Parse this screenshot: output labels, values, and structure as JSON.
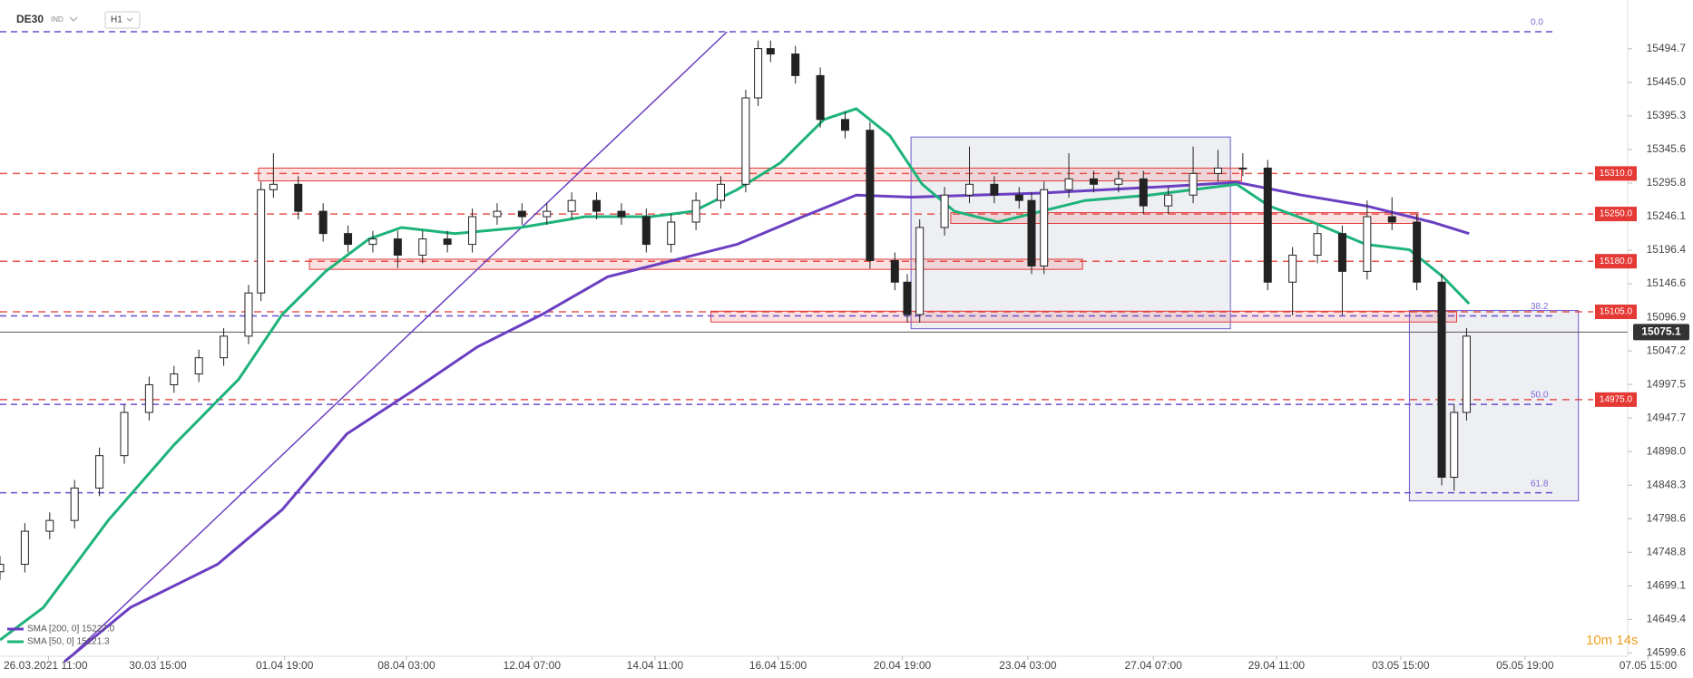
{
  "header": {
    "symbol": "DE30",
    "tag": "IND",
    "timeframe": "H1"
  },
  "timer": "10m 14s",
  "chart_data": {
    "type": "candlestick",
    "x": [
      0,
      2,
      4,
      6,
      8,
      10,
      12,
      14,
      16,
      18,
      20,
      21,
      22,
      24,
      26,
      28,
      30,
      32,
      34,
      36,
      38,
      40,
      42,
      44,
      46,
      48,
      50,
      52,
      54,
      56,
      58,
      60,
      61,
      62,
      64,
      66,
      68,
      70,
      72,
      73,
      74,
      76,
      78,
      80,
      82,
      83,
      84,
      86,
      88,
      90,
      92,
      94,
      96,
      98,
      100,
      102,
      104,
      106,
      108,
      110,
      112,
      114,
      116,
      117,
      118
    ],
    "open": [
      14720,
      14731,
      14780,
      14796,
      14844,
      14892,
      14956,
      14997,
      15013,
      15037,
      15069,
      15133,
      15286,
      15294,
      15254,
      15221,
      15205,
      15213,
      15189,
      15213,
      15205,
      15246,
      15254,
      15246,
      15254,
      15270,
      15254,
      15246,
      15205,
      15238,
      15270,
      15294,
      15422,
      15495,
      15487,
      15455,
      15390,
      15374,
      15181,
      15149,
      15101,
      15230,
      15278,
      15294,
      15278,
      15270,
      15173,
      15286,
      15302,
      15294,
      15302,
      15262,
      15278,
      15310,
      15318,
      15318,
      15149,
      15189,
      15221,
      15165,
      15246,
      15238,
      15149,
      14860,
      14956
    ],
    "high": [
      14743,
      14792,
      14808,
      14856,
      14904,
      14968,
      15009,
      15025,
      15049,
      15081,
      15145,
      15298,
      15340,
      15306,
      15266,
      15233,
      15225,
      15225,
      15225,
      15225,
      15258,
      15266,
      15266,
      15266,
      15282,
      15282,
      15266,
      15258,
      15250,
      15282,
      15306,
      15434,
      15507,
      15507,
      15499,
      15467,
      15402,
      15386,
      15193,
      15161,
      15242,
      15290,
      15350,
      15306,
      15290,
      15282,
      15298,
      15340,
      15314,
      15314,
      15314,
      15290,
      15350,
      15345,
      15340,
      15330,
      15201,
      15233,
      15233,
      15270,
      15275,
      15250,
      15161,
      14968,
      15081
    ],
    "low": [
      14708,
      14719,
      14768,
      14784,
      14832,
      14880,
      14944,
      14985,
      15001,
      15025,
      15057,
      15121,
      15274,
      15242,
      15209,
      15193,
      15193,
      15170,
      15177,
      15193,
      15193,
      15234,
      15234,
      15234,
      15242,
      15242,
      15234,
      15193,
      15193,
      15226,
      15258,
      15282,
      15410,
      15475,
      15443,
      15378,
      15362,
      15169,
      15137,
      15089,
      15089,
      15218,
      15266,
      15266,
      15258,
      15161,
      15161,
      15274,
      15282,
      15282,
      15250,
      15250,
      15266,
      15298,
      15306,
      15137,
      15100,
      15177,
      15100,
      15153,
      15226,
      15137,
      14848,
      14840,
      14944
    ],
    "close": [
      14731,
      14780,
      14796,
      14844,
      14892,
      14956,
      14997,
      15013,
      15037,
      15069,
      15133,
      15286,
      15294,
      15254,
      15221,
      15205,
      15213,
      15189,
      15213,
      15205,
      15246,
      15254,
      15246,
      15254,
      15270,
      15254,
      15246,
      15205,
      15238,
      15270,
      15294,
      15422,
      15495,
      15487,
      15455,
      15390,
      15374,
      15181,
      15149,
      15101,
      15230,
      15278,
      15294,
      15278,
      15270,
      15173,
      15286,
      15302,
      15294,
      15302,
      15262,
      15278,
      15310,
      15318,
      15318,
      15149,
      15189,
      15221,
      15165,
      15246,
      15238,
      15149,
      14860,
      14956,
      15069
    ],
    "xlim": [
      0,
      136
    ],
    "xticks": [
      {
        "value": 3.9,
        "label": "26.03.2021  11:00"
      },
      {
        "value": 12.7,
        "label": "30.03  15:00"
      },
      {
        "value": 22.9,
        "label": "01.04  19:00"
      },
      {
        "value": 32.7,
        "label": "08.04  03:00"
      },
      {
        "value": 42.8,
        "label": "12.04  07:00"
      },
      {
        "value": 52.7,
        "label": "14.04  11:00"
      },
      {
        "value": 62.6,
        "label": "16.04  15:00"
      },
      {
        "value": 72.6,
        "label": "20.04  19:00"
      },
      {
        "value": 82.7,
        "label": "23.04  03:00"
      },
      {
        "value": 92.8,
        "label": "27.04  07:00"
      },
      {
        "value": 102.7,
        "label": "29.04  11:00"
      },
      {
        "value": 112.7,
        "label": "03.05  15:00"
      },
      {
        "value": 122.7,
        "label": "05.05  19:00"
      },
      {
        "value": 132.6,
        "label": "07.05  15:00"
      }
    ],
    "ylim": [
      14594.8,
      15567.0
    ],
    "yticks": [
      15494.7,
      {
        "value": 15445,
        "label": "15445.0"
      },
      15395.3,
      15345.6,
      15295.8,
      15246.1,
      15196.4,
      15146.6,
      15096.9,
      15047.2,
      14997.5,
      14947.7,
      {
        "value": 14898,
        "label": "14898.0"
      },
      14848.3,
      14798.6,
      14748.8,
      14699.1,
      14649.4,
      14599.6
    ],
    "series": [
      {
        "name": "SMA [200, 0] 15227.0",
        "color": "#6a3fc1",
        "x": [
          5.2,
          10.5,
          17.5,
          22.7,
          27.9,
          33.2,
          38.4,
          43.6,
          48.9,
          54.1,
          59.3,
          64.6,
          68.9,
          73.3,
          78.5,
          83.8,
          89,
          94.2,
          99.5,
          104.7,
          109.9,
          115.2,
          118.2
        ],
        "values": [
          14587,
          14667,
          14731,
          14812,
          14924,
          14988,
          15053,
          15101,
          15157,
          15181,
          15205,
          15246,
          15278,
          15275,
          15278,
          15281,
          15286,
          15291,
          15297,
          15278,
          15262,
          15238,
          15221
        ]
      },
      {
        "name": "SMA [50, 0] 15121.3",
        "color": "#1db37a",
        "x": [
          0,
          3.5,
          8.7,
          14,
          19.2,
          22.7,
          26.2,
          29.7,
          32.3,
          36.6,
          41.9,
          47.1,
          52.4,
          55.8,
          59.3,
          62.8,
          66.3,
          68.9,
          71.6,
          74.2,
          76.8,
          80.3,
          83.8,
          87.3,
          92.5,
          96,
          99.5,
          102.1,
          105.6,
          109.9,
          113.4,
          116.1,
          118.2
        ],
        "values": [
          14619,
          14667,
          14796,
          14908,
          15005,
          15101,
          15165,
          15213,
          15230,
          15221,
          15230,
          15246,
          15246,
          15254,
          15286,
          15326,
          15390,
          15406,
          15366,
          15294,
          15254,
          15238,
          15254,
          15270,
          15278,
          15286,
          15294,
          15262,
          15238,
          15205,
          15197,
          15157,
          15117
        ]
      }
    ],
    "levels": [
      {
        "value": 15310,
        "label": "15310.0"
      },
      {
        "value": 15250,
        "label": "15250.0"
      },
      {
        "value": 15180,
        "label": "15180.0"
      },
      {
        "value": 15105,
        "label": "15105.0"
      },
      {
        "value": 14975,
        "label": "14975.0"
      }
    ],
    "fib": [
      {
        "value": 15520,
        "label": "0.0"
      },
      {
        "value": 15099,
        "label": "38.2"
      },
      {
        "value": 14968,
        "label": "50.0"
      },
      {
        "value": 14837,
        "label": "61.8"
      }
    ],
    "current_price": {
      "value": 15075.1,
      "label": "15075.1"
    },
    "zones": [
      {
        "x": [
          20.8,
          99.9
        ],
        "y": [
          15299,
          15318
        ]
      },
      {
        "x": [
          24.9,
          87.1
        ],
        "y": [
          15168,
          15183
        ]
      },
      {
        "x": [
          57.2,
          117.2
        ],
        "y": [
          15090,
          15106
        ]
      },
      {
        "x": [
          76.5,
          114.1
        ],
        "y": [
          15236,
          15252
        ]
      }
    ],
    "boxes": [
      {
        "x": [
          73.3,
          99
        ],
        "y": [
          15080,
          15364
        ]
      },
      {
        "x": [
          113.4,
          127
        ],
        "y": [
          14825,
          15107
        ]
      }
    ],
    "trendline": {
      "x": [
        5.7,
        58.5
      ],
      "values": [
        14595,
        15520
      ]
    }
  }
}
